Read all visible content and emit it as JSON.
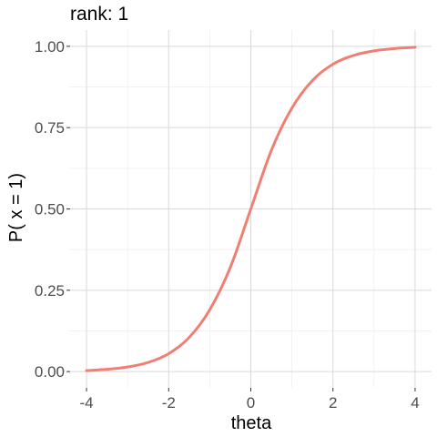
{
  "chart_data": {
    "type": "line",
    "title": "rank: 1",
    "xlabel": "theta",
    "ylabel": "P( x = 1)",
    "xlim": [
      -4.4,
      4.4
    ],
    "ylim": [
      -0.05,
      1.05
    ],
    "x_ticks": [
      -4,
      -2,
      0,
      2,
      4
    ],
    "x_tick_labels": [
      "-4",
      "-2",
      "0",
      "2",
      "4"
    ],
    "y_ticks": [
      0,
      0.25,
      0.5,
      0.75,
      1
    ],
    "y_tick_labels": [
      "0.00",
      "0.25",
      "0.50",
      "0.75",
      "1.00"
    ],
    "grid": true,
    "series": [
      {
        "color": "#f07e72",
        "x": [
          -4,
          -3.5,
          -3,
          -2.5,
          -2,
          -1.5,
          -1,
          -0.5,
          0,
          0.5,
          1,
          1.5,
          2,
          2.5,
          3,
          3.5,
          4
        ],
        "y": [
          0.003,
          0.007,
          0.014,
          0.028,
          0.055,
          0.105,
          0.19,
          0.32,
          0.5,
          0.68,
          0.81,
          0.895,
          0.945,
          0.972,
          0.986,
          0.993,
          0.997
        ]
      }
    ]
  }
}
